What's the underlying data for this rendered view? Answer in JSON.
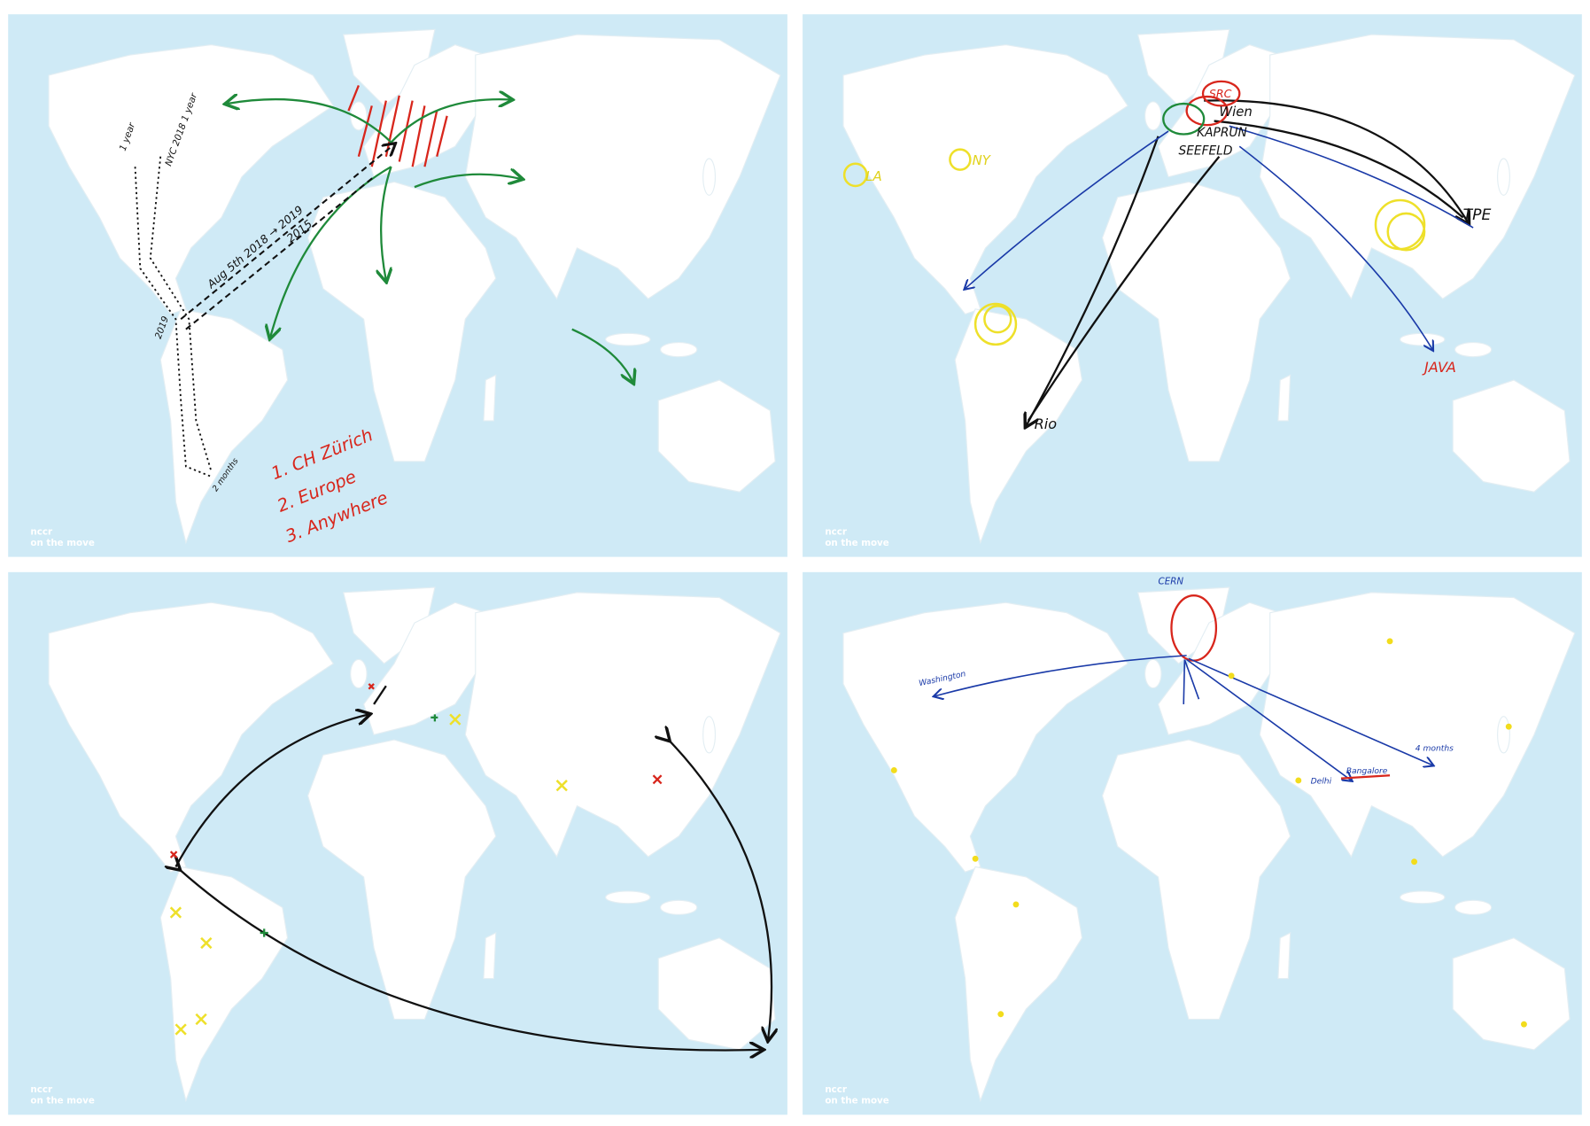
{
  "panels": [
    {
      "footer": [
        "nccr",
        "on the move"
      ],
      "annotations": [
        "1. CH Zürich",
        "2. Europe",
        "3. Anywhere",
        "1 year",
        "NYC 2018 1 year",
        "Aug 5th 2018 → 2019",
        "2015",
        "2019",
        "2 months"
      ]
    },
    {
      "footer": [
        "nccr",
        "on the move"
      ],
      "annotations": [
        "LA",
        "NY",
        "SRC",
        "Wien",
        "KAPRUN",
        "SEEFELD",
        "TPE",
        "JAVA",
        "Rio"
      ]
    },
    {
      "footer": [
        "nccr",
        "on the move"
      ],
      "annotations": []
    },
    {
      "footer": [
        "nccr",
        "on the move"
      ],
      "annotations": [
        "CERN",
        "Washington",
        "4 months",
        "Delhi",
        "Bangalore"
      ]
    }
  ]
}
